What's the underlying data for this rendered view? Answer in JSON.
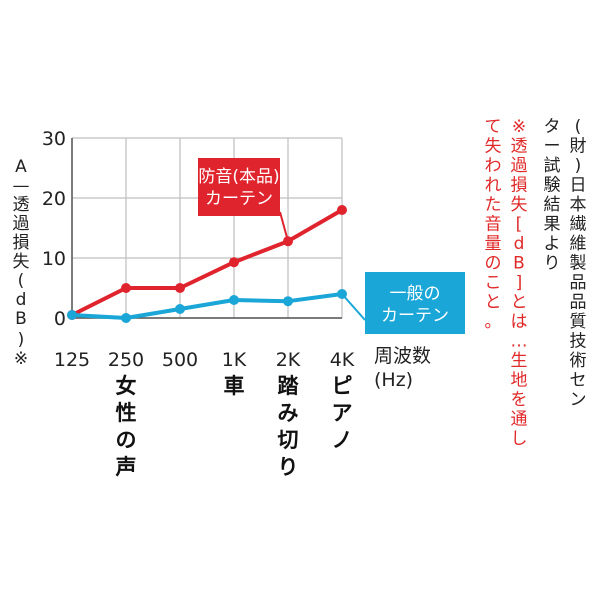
{
  "chart_data": {
    "type": "line",
    "ylabel": "A—透過損失(dB)※",
    "xlabel": "周波数(Hz)",
    "x": [
      "125",
      "250",
      "500",
      "1K",
      "2K",
      "4K"
    ],
    "ylim": [
      0,
      30
    ],
    "yticks": [
      "0",
      "10",
      "20",
      "30"
    ],
    "grid": true,
    "series": [
      {
        "name": "防音(本品)カーテン",
        "name_lines": [
          "防音(本品)",
          "カーテン"
        ],
        "color": "#e0242e",
        "values": [
          0.5,
          5,
          5,
          9.3,
          12.8,
          18
        ]
      },
      {
        "name": "一般のカーテン",
        "name_lines": [
          "一般の",
          "カーテン"
        ],
        "color": "#1aa6d6",
        "values": [
          0.5,
          0,
          1.5,
          3,
          2.8,
          4
        ]
      }
    ],
    "annotations": [
      {
        "x": "250",
        "text": "女性の声"
      },
      {
        "x": "1K",
        "text": "車"
      },
      {
        "x": "2K",
        "text": "踏み切り"
      },
      {
        "x": "4K",
        "text": "ピアノ"
      }
    ]
  },
  "notes": {
    "source": "(財)日本繊維製品品質技術センター試験結果より",
    "source_lines": [
      "(財)日本繊維製品品質技術セン",
      "ター試験結果より"
    ],
    "definition": "※透過損失[dB]とは…生地を通して失われた音量のこと。",
    "definition_lines": [
      "※透過損失[dB]とは…生地を通し",
      "て失われた音量のこと。"
    ]
  }
}
